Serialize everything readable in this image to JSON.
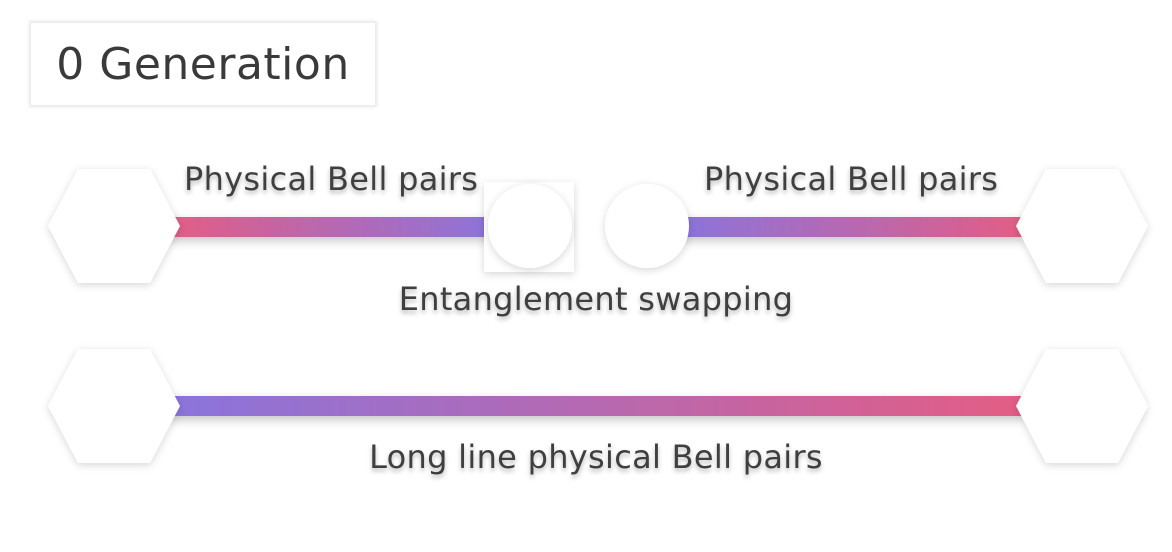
{
  "generation_label": "0 Generation",
  "top_left_link_label": "Physical Bell pairs",
  "top_right_link_label": "Physical Bell pairs",
  "swap_label": "Entanglement swapping",
  "long_link_label": "Long line physical Bell pairs",
  "colors": {
    "gradient_pink": "#e35d85",
    "gradient_purple": "#8a74dc",
    "node_fill": "#ffffff",
    "text": "#3f3f3f"
  }
}
